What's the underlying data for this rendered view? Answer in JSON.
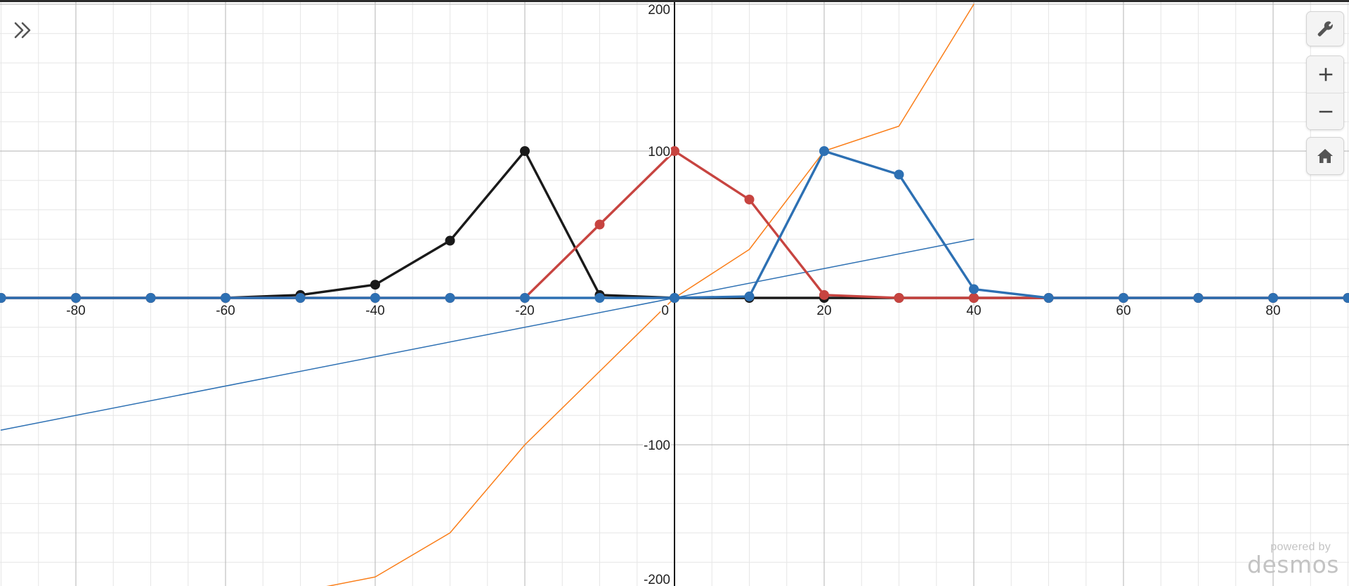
{
  "controls": {
    "expand_icon": "double-chevron-right-icon",
    "settings_icon": "wrench-icon",
    "zoom_in_icon": "plus-icon",
    "zoom_out_icon": "minus-icon",
    "home_icon": "home-icon"
  },
  "branding": {
    "small": "powered by",
    "big": "desmos"
  },
  "chart_data": {
    "type": "line",
    "title": "",
    "xlabel": "",
    "ylabel": "",
    "xlim": [
      -90,
      90
    ],
    "ylim": [
      -200,
      200
    ],
    "grid": true,
    "x_major_ticks": [
      -80,
      -60,
      -40,
      -20,
      20,
      40,
      60,
      80
    ],
    "x_tick_labels": [
      "-80",
      "-60",
      "-40",
      "-20",
      "20",
      "40",
      "60",
      "80"
    ],
    "y_major_ticks": [
      -200,
      -100,
      100,
      200
    ],
    "y_tick_labels": [
      "-200",
      "-100",
      "100",
      "200"
    ],
    "origin_label": "0",
    "series": [
      {
        "color": "#2d70b3",
        "style": "thin-line",
        "points": [
          [
            -90,
            -90
          ],
          [
            40,
            40
          ]
        ]
      },
      {
        "color": "#fa7e19",
        "style": "thin-line",
        "points": [
          [
            -50,
            -200
          ],
          [
            -40,
            -190
          ],
          [
            -30,
            -160
          ],
          [
            -20,
            -100
          ],
          [
            -10,
            -50
          ],
          [
            0,
            0
          ],
          [
            10,
            33
          ],
          [
            20,
            100
          ],
          [
            30,
            117
          ],
          [
            40,
            200
          ]
        ]
      },
      {
        "color": "#1a1a1a",
        "style": "line-with-points",
        "points": [
          [
            -90,
            0
          ],
          [
            -80,
            0
          ],
          [
            -70,
            0
          ],
          [
            -60,
            0
          ],
          [
            -50,
            2
          ],
          [
            -40,
            9
          ],
          [
            -30,
            39
          ],
          [
            -20,
            100
          ],
          [
            -10,
            2
          ],
          [
            0,
            0
          ],
          [
            10,
            0
          ],
          [
            20,
            0
          ],
          [
            30,
            0
          ],
          [
            40,
            0
          ],
          [
            50,
            0
          ],
          [
            60,
            0
          ],
          [
            70,
            0
          ],
          [
            80,
            0
          ],
          [
            90,
            0
          ]
        ]
      },
      {
        "color": "#c74440",
        "style": "line-with-points",
        "points": [
          [
            -90,
            0
          ],
          [
            -80,
            0
          ],
          [
            -70,
            0
          ],
          [
            -60,
            0
          ],
          [
            -50,
            0
          ],
          [
            -40,
            0
          ],
          [
            -30,
            0
          ],
          [
            -20,
            0
          ],
          [
            -10,
            50
          ],
          [
            0,
            100
          ],
          [
            10,
            67
          ],
          [
            20,
            2
          ],
          [
            30,
            0
          ],
          [
            40,
            0
          ],
          [
            50,
            0
          ],
          [
            60,
            0
          ],
          [
            70,
            0
          ],
          [
            80,
            0
          ],
          [
            90,
            0
          ]
        ]
      },
      {
        "color": "#2d70b3",
        "style": "line-with-points",
        "points": [
          [
            -90,
            0
          ],
          [
            -80,
            0
          ],
          [
            -70,
            0
          ],
          [
            -60,
            0
          ],
          [
            -50,
            0
          ],
          [
            -40,
            0
          ],
          [
            -30,
            0
          ],
          [
            -20,
            0
          ],
          [
            -10,
            0
          ],
          [
            0,
            0
          ],
          [
            10,
            1
          ],
          [
            20,
            100
          ],
          [
            30,
            84
          ],
          [
            40,
            6
          ],
          [
            50,
            0
          ],
          [
            60,
            0
          ],
          [
            70,
            0
          ],
          [
            80,
            0
          ],
          [
            90,
            0
          ]
        ]
      }
    ]
  }
}
